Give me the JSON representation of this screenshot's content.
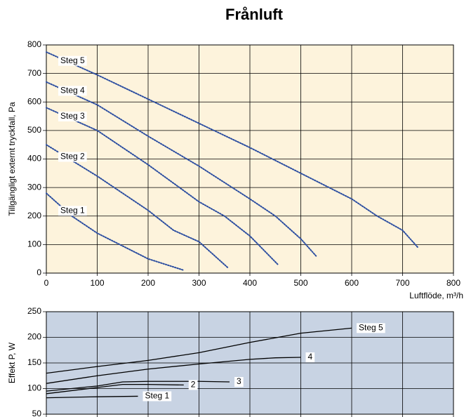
{
  "chart_data": [
    {
      "type": "line",
      "title": "Frånluft",
      "x_label": "Luftflöde, m³/h",
      "y_label": "Tillgängligt externt tryckfall, Pa",
      "xlim": [
        0,
        800
      ],
      "xticks": [
        0,
        100,
        200,
        300,
        400,
        500,
        600,
        700,
        800
      ],
      "ylim": [
        0,
        800
      ],
      "yticks": [
        0,
        100,
        200,
        300,
        400,
        500,
        600,
        700,
        800
      ],
      "grid": true,
      "background": "#fdf3dc",
      "line_style": "dotted",
      "label_position": "start",
      "series": [
        {
          "name": "Steg 5",
          "color": "#2b4da0",
          "x": [
            0,
            100,
            200,
            300,
            400,
            500,
            600,
            650,
            700,
            730
          ],
          "values": [
            775,
            695,
            610,
            525,
            440,
            350,
            260,
            200,
            150,
            90
          ]
        },
        {
          "name": "Steg 4",
          "color": "#2b4da0",
          "x": [
            0,
            100,
            200,
            300,
            400,
            450,
            500,
            530
          ],
          "values": [
            670,
            590,
            480,
            375,
            260,
            200,
            120,
            60
          ]
        },
        {
          "name": "Steg 3",
          "color": "#2b4da0",
          "x": [
            0,
            100,
            200,
            300,
            350,
            400,
            455
          ],
          "values": [
            580,
            500,
            380,
            250,
            200,
            130,
            30
          ]
        },
        {
          "name": "Steg 2",
          "color": "#2b4da0",
          "x": [
            0,
            100,
            200,
            250,
            300,
            356
          ],
          "values": [
            450,
            340,
            220,
            150,
            110,
            20
          ]
        },
        {
          "name": "Steg 1",
          "color": "#2b4da0",
          "x": [
            0,
            50,
            100,
            150,
            200,
            270
          ],
          "values": [
            280,
            200,
            140,
            95,
            50,
            10
          ]
        }
      ]
    },
    {
      "type": "line",
      "y_label": "Effekt P, W",
      "xlim": [
        0,
        800
      ],
      "xticks": [
        0,
        100,
        200,
        300,
        400,
        500,
        600,
        700,
        800
      ],
      "show_xtick_labels": false,
      "ylim": [
        50,
        250
      ],
      "yticks": [
        50,
        100,
        150,
        200,
        250
      ],
      "grid": true,
      "background": "#c8d3e3",
      "line_style": "solid",
      "label_position": "end",
      "series": [
        {
          "name": "Steg 5",
          "color": "#000000",
          "x": [
            0,
            100,
            200,
            300,
            400,
            500,
            600
          ],
          "values": [
            130,
            143,
            155,
            170,
            190,
            208,
            218
          ]
        },
        {
          "name": "4",
          "color": "#000000",
          "x": [
            0,
            100,
            200,
            300,
            400,
            450,
            500
          ],
          "values": [
            110,
            125,
            138,
            148,
            157,
            160,
            161
          ]
        },
        {
          "name": "3",
          "color": "#000000",
          "x": [
            0,
            100,
            150,
            200,
            300,
            360
          ],
          "values": [
            95,
            105,
            113,
            114,
            114,
            113
          ]
        },
        {
          "name": "2",
          "color": "#000000",
          "x": [
            0,
            100,
            150,
            200,
            270
          ],
          "values": [
            90,
            102,
            108,
            108,
            107
          ]
        },
        {
          "name": "Steg 1",
          "color": "#000000",
          "x": [
            0,
            100,
            180
          ],
          "values": [
            82,
            84,
            85
          ]
        }
      ]
    }
  ]
}
